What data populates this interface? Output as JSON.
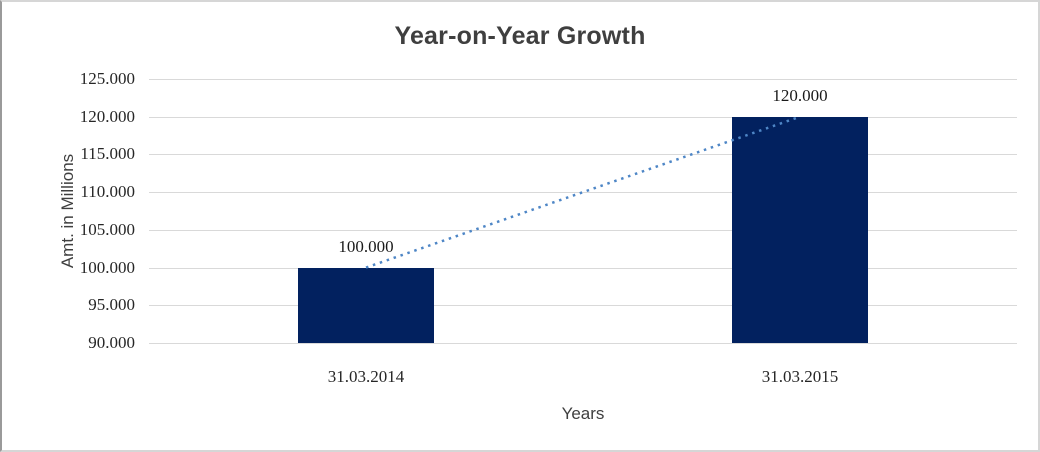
{
  "chart_data": {
    "type": "bar",
    "title": "Year-on-Year Growth",
    "xlabel": "Years",
    "ylabel": "Amt. in Millions",
    "categories": [
      "31.03.2014",
      "31.03.2015"
    ],
    "values": [
      100,
      120
    ],
    "data_labels": [
      "100.000",
      "120.000"
    ],
    "y_ticks": [
      "125.000",
      "120.000",
      "115.000",
      "110.000",
      "105.000",
      "100.000",
      "95.000",
      "90.000"
    ],
    "ylim": [
      90,
      125
    ],
    "grid": true,
    "legend": "none",
    "trendline": {
      "style": "dotted",
      "from": [
        0,
        100
      ],
      "to": [
        1,
        120
      ]
    },
    "colors": {
      "bar": "#02215f",
      "trendline": "#4e86c6",
      "gridline": "#d9d9d9",
      "title_text": "#3f3f3f",
      "axis_title_text": "#3f3f3f",
      "tick_text": "#262626",
      "data_label_text": "#1a1a1a",
      "background": "#ffffff",
      "frame_border": "#d6d6d6"
    }
  }
}
